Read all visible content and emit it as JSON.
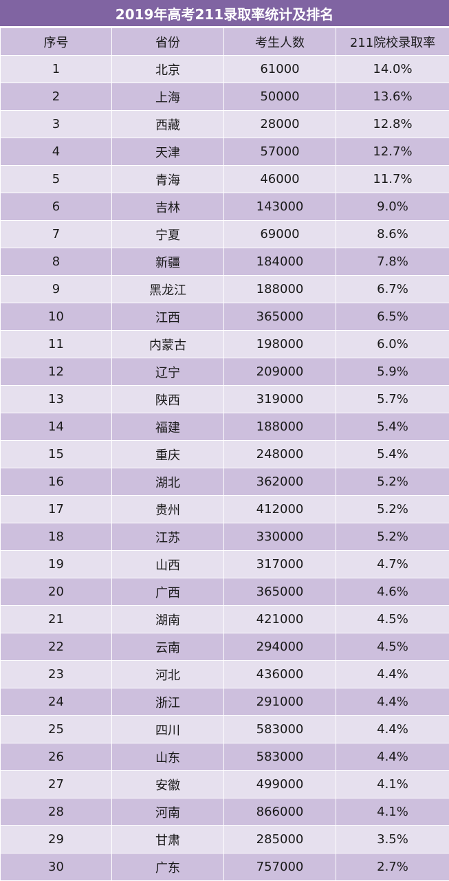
{
  "title": "2019年高考211录取率统计及排名",
  "columns": [
    "序号",
    "省份",
    "考生人数",
    "211院校录取率"
  ],
  "rows": [
    [
      "1",
      "北京",
      "61000",
      "14.0%"
    ],
    [
      "2",
      "上海",
      "50000",
      "13.6%"
    ],
    [
      "3",
      "西藏",
      "28000",
      "12.8%"
    ],
    [
      "4",
      "天津",
      "57000",
      "12.7%"
    ],
    [
      "5",
      "青海",
      "46000",
      "11.7%"
    ],
    [
      "6",
      "吉林",
      "143000",
      "9.0%"
    ],
    [
      "7",
      "宁夏",
      "69000",
      "8.6%"
    ],
    [
      "8",
      "新疆",
      "184000",
      "7.8%"
    ],
    [
      "9",
      "黑龙江",
      "188000",
      "6.7%"
    ],
    [
      "10",
      "江西",
      "365000",
      "6.5%"
    ],
    [
      "11",
      "内蒙古",
      "198000",
      "6.0%"
    ],
    [
      "12",
      "辽宁",
      "209000",
      "5.9%"
    ],
    [
      "13",
      "陕西",
      "319000",
      "5.7%"
    ],
    [
      "14",
      "福建",
      "188000",
      "5.4%"
    ],
    [
      "15",
      "重庆",
      "248000",
      "5.4%"
    ],
    [
      "16",
      "湖北",
      "362000",
      "5.2%"
    ],
    [
      "17",
      "贵州",
      "412000",
      "5.2%"
    ],
    [
      "18",
      "江苏",
      "330000",
      "5.2%"
    ],
    [
      "19",
      "山西",
      "317000",
      "4.7%"
    ],
    [
      "20",
      "广西",
      "365000",
      "4.6%"
    ],
    [
      "21",
      "湖南",
      "421000",
      "4.5%"
    ],
    [
      "22",
      "云南",
      "294000",
      "4.5%"
    ],
    [
      "23",
      "河北",
      "436000",
      "4.4%"
    ],
    [
      "24",
      "浙江",
      "291000",
      "4.4%"
    ],
    [
      "25",
      "四川",
      "583000",
      "4.4%"
    ],
    [
      "26",
      "山东",
      "583000",
      "4.4%"
    ],
    [
      "27",
      "安徽",
      "499000",
      "4.1%"
    ],
    [
      "28",
      "河南",
      "866000",
      "4.1%"
    ],
    [
      "29",
      "甘肃",
      "285000",
      "3.5%"
    ],
    [
      "30",
      "广东",
      "757000",
      "2.7%"
    ]
  ],
  "colors": {
    "title_bg": "#8064a2",
    "header_bg": "#cdbfdd",
    "row_light": "#e6e0ee",
    "row_dark": "#cdbfdd"
  }
}
